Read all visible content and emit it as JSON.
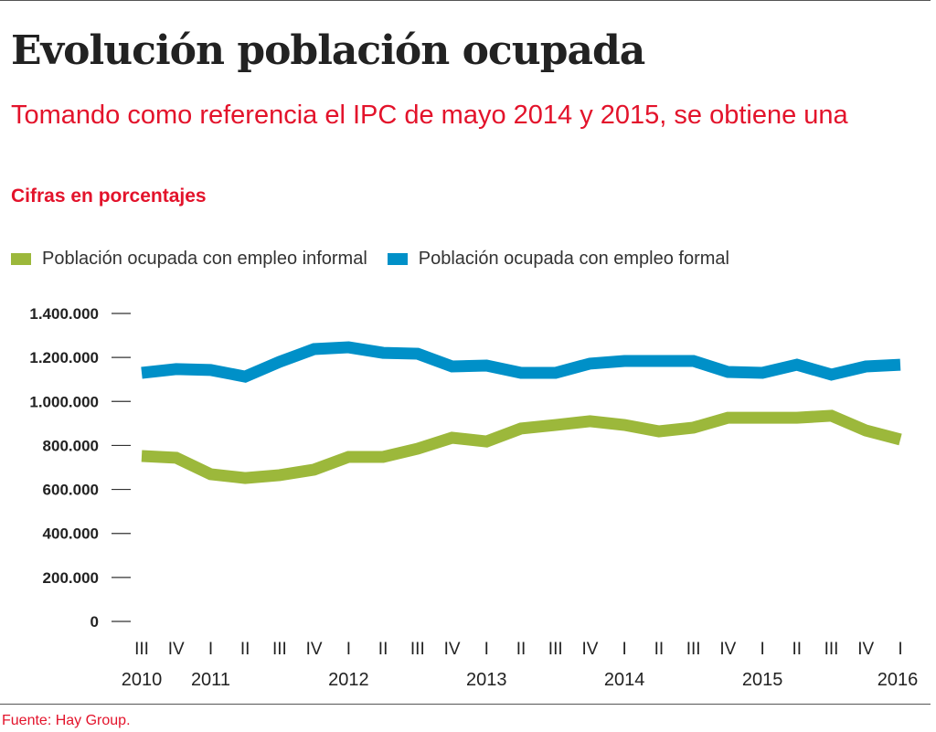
{
  "title": "Evolución población ocupada",
  "subtitle": "Tomando como referencia el IPC de mayo 2014 y 2015, se obtiene una",
  "units": "Cifras en porcentajes",
  "source": "Fuente: Hay Group.",
  "colors": {
    "informal": "#9cb83b",
    "formal": "#0090c8",
    "accent": "#e3132b"
  },
  "chart_data": {
    "type": "line",
    "title": "Evolución población ocupada",
    "ylim": [
      0,
      1400000
    ],
    "yticks": [
      "1.400.000",
      "1.200.000",
      "1.000.000",
      "800.000",
      "600.000",
      "400.000",
      "200.000",
      "0"
    ],
    "ytick_values": [
      1400000,
      1200000,
      1000000,
      800000,
      600000,
      400000,
      200000,
      0
    ],
    "categories": [
      "III",
      "IV",
      "I",
      "II",
      "III",
      "IV",
      "I",
      "II",
      "III",
      "IV",
      "I",
      "II",
      "III",
      "IV",
      "I",
      "II",
      "III",
      "IV",
      "I",
      "II",
      "III",
      "IV",
      "I"
    ],
    "year_labels": [
      {
        "index": 0,
        "label": "2010"
      },
      {
        "index": 2,
        "label": "2011"
      },
      {
        "index": 6,
        "label": "2012"
      },
      {
        "index": 10,
        "label": "2013"
      },
      {
        "index": 14,
        "label": "2014"
      },
      {
        "index": 18,
        "label": "2015"
      },
      {
        "index": 22,
        "label": "2016"
      }
    ],
    "legend_position": "top-left",
    "grid": false,
    "series": [
      {
        "name": "Población ocupada con empleo informal",
        "color": "#9cb83b",
        "values": [
          752000,
          744000,
          669000,
          652000,
          665000,
          690000,
          748000,
          748000,
          785000,
          835000,
          818000,
          877000,
          893000,
          910000,
          893000,
          864000,
          881000,
          926000,
          926000,
          926000,
          935000,
          868000,
          827000
        ]
      },
      {
        "name": "Población ocupada con empleo formal",
        "color": "#0090c8",
        "values": [
          1130000,
          1147000,
          1143000,
          1113000,
          1180000,
          1238000,
          1246000,
          1221000,
          1217000,
          1159000,
          1163000,
          1130000,
          1130000,
          1172000,
          1184000,
          1184000,
          1184000,
          1134000,
          1130000,
          1167000,
          1122000,
          1159000,
          1167000
        ]
      }
    ]
  }
}
